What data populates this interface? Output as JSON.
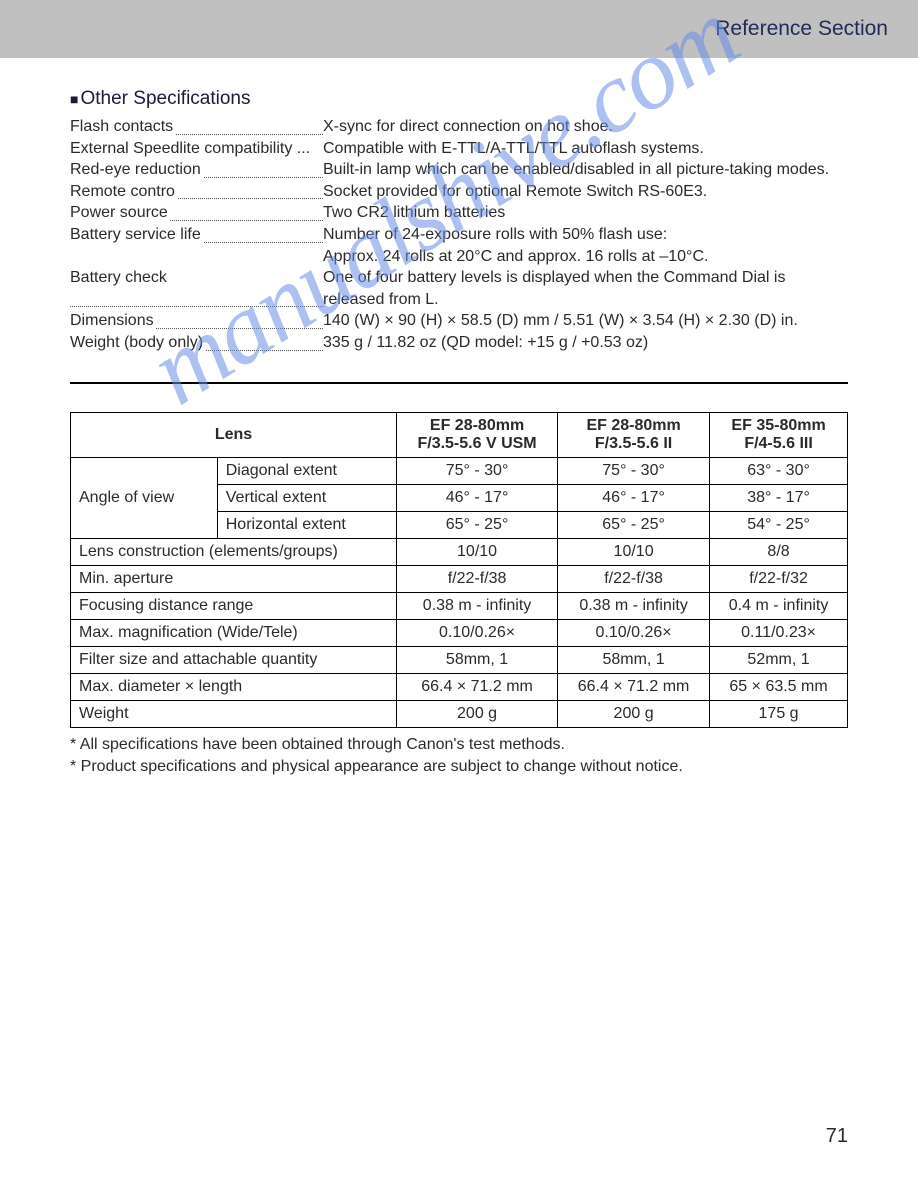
{
  "header": {
    "title": "Reference Section"
  },
  "section_title": "Other Specifications",
  "specs": [
    {
      "label": "Flash contacts",
      "value": "X-sync for direct connection on hot shoe.",
      "dots": true
    },
    {
      "label": "External Speedlite compatibility",
      "value": "Compatible with E-TTL/A-TTL/TTL autoflash systems.",
      "dots": false
    },
    {
      "label": "Red-eye reduction",
      "value": "Built-in lamp which can be enabled/disabled in all picture-taking modes.",
      "dots": true
    },
    {
      "label": "Remote contro",
      "value": "Socket provided for optional Remote Switch RS-60E3.",
      "dots": true
    },
    {
      "label": "Power source",
      "value": "Two CR2 lithium batteries",
      "dots": true
    },
    {
      "label": "Battery service life",
      "value": "Number of 24-exposure rolls with 50% flash use:",
      "dots": true,
      "continue": "Approx. 24 rolls at 20°C  and approx. 16 rolls at –10°C."
    },
    {
      "label": "Battery check",
      "value": "One of four battery levels is displayed when the Command Dial is released from L.",
      "dots": true
    },
    {
      "label": "Dimensions",
      "value": "140 (W) × 90 (H) × 58.5 (D) mm / 5.51 (W) × 3.54 (H) × 2.30 (D) in.",
      "dots": true
    },
    {
      "label": "Weight (body only)",
      "value": "335 g / 11.82 oz (QD model: +15 g / +0.53 oz)",
      "dots": true
    }
  ],
  "lens_table": {
    "header_lens": "Lens",
    "headers": [
      "EF 28-80mm\nF/3.5-5.6 V USM",
      "EF 28-80mm\nF/3.5-5.6 II",
      "EF 35-80mm\nF/4-5.6 III"
    ],
    "angle_label": "Angle of view",
    "angle_rows": [
      {
        "sub": "Diagonal extent",
        "v": [
          "75° - 30°",
          "75° - 30°",
          "63° - 30°"
        ]
      },
      {
        "sub": "Vertical extent",
        "v": [
          "46° - 17°",
          "46° - 17°",
          "38° - 17°"
        ]
      },
      {
        "sub": "Horizontal extent",
        "v": [
          "65° - 25°",
          "65° - 25°",
          "54° - 25°"
        ]
      }
    ],
    "rows": [
      {
        "label": "Lens construction (elements/groups)",
        "v": [
          "10/10",
          "10/10",
          "8/8"
        ]
      },
      {
        "label": "Min. aperture",
        "v": [
          "f/22-f/38",
          "f/22-f/38",
          "f/22-f/32"
        ]
      },
      {
        "label": "Focusing distance range",
        "v": [
          "0.38 m - infinity",
          "0.38 m - infinity",
          "0.4 m - infinity"
        ]
      },
      {
        "label": "Max. magnification (Wide/Tele)",
        "v": [
          "0.10/0.26×",
          "0.10/0.26×",
          "0.11/0.23×"
        ]
      },
      {
        "label": "Filter size and attachable quantity",
        "v": [
          "58mm, 1",
          "58mm, 1",
          "52mm, 1"
        ]
      },
      {
        "label": "Max. diameter × length",
        "v": [
          "66.4 × 71.2 mm",
          "66.4 × 71.2 mm",
          "65 × 63.5 mm"
        ]
      },
      {
        "label": "Weight",
        "v": [
          "200 g",
          "200 g",
          "175 g"
        ]
      }
    ]
  },
  "footnotes": [
    "* All specifications have been obtained through Canon's test methods.",
    "* Product specifications and physical appearance are subject to change without notice."
  ],
  "page_number": "71",
  "watermark": "manualshive.com",
  "colors": {
    "header_bg": "#c0c0c0",
    "text": "#2a2a2a",
    "watermark": "#6a8de8"
  }
}
